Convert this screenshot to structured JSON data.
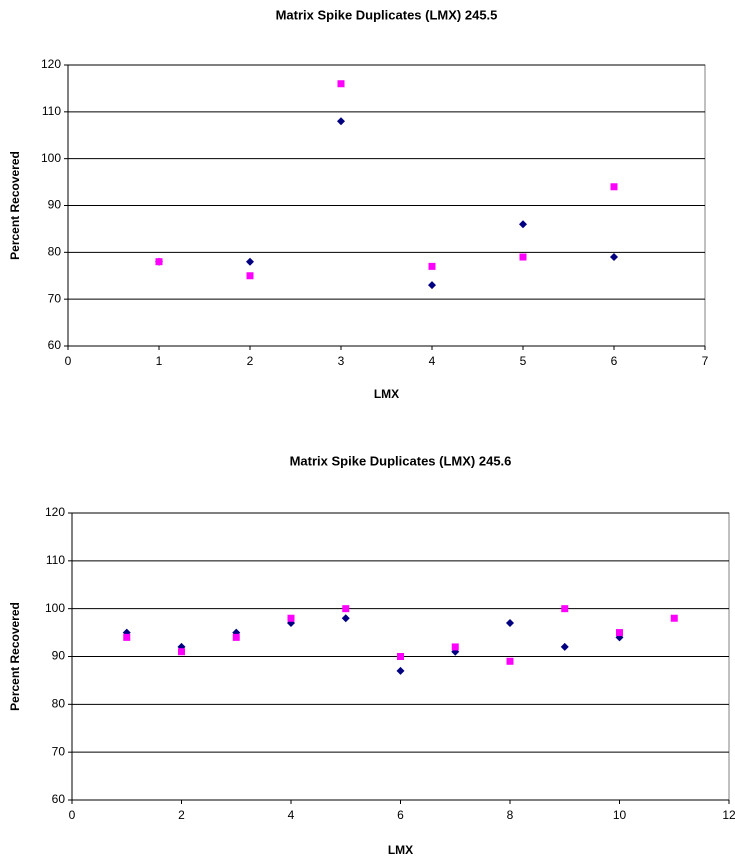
{
  "chart_data": [
    {
      "type": "scatter",
      "title": "Matrix Spike Duplicates (LMX) 245.5",
      "x_label": "LMX",
      "y_label": "Percent Recovered",
      "x": [
        1,
        2,
        3,
        4,
        5,
        6
      ],
      "series": [
        {
          "color": "#000080",
          "marker": "diamond",
          "values": [
            78,
            78,
            108,
            73,
            86,
            79
          ]
        },
        {
          "color": "#ff00ff",
          "marker": "square",
          "values": [
            78,
            75,
            116,
            77,
            79,
            94
          ]
        }
      ],
      "xlim": [
        0,
        7
      ],
      "xticks": [
        0,
        1,
        2,
        3,
        4,
        5,
        6,
        7
      ],
      "ylim": [
        60,
        120
      ],
      "yticks": [
        60,
        70,
        80,
        90,
        100,
        110,
        120
      ],
      "grid": true
    },
    {
      "type": "scatter",
      "title": "Matrix Spike Duplicates (LMX) 245.6",
      "x_label": "LMX",
      "y_label": "Percent Recovered",
      "x": [
        1,
        2,
        3,
        4,
        5,
        6,
        7,
        8,
        9,
        10,
        11
      ],
      "series": [
        {
          "color": "#000080",
          "marker": "diamond",
          "values": [
            95,
            92,
            95,
            97,
            98,
            87,
            91,
            97,
            92,
            94,
            null
          ]
        },
        {
          "color": "#ff00ff",
          "marker": "square",
          "values": [
            94,
            91,
            94,
            98,
            100,
            90,
            92,
            89,
            100,
            95,
            98
          ]
        }
      ],
      "xlim": [
        0,
        12
      ],
      "xticks": [
        0,
        2,
        4,
        6,
        8,
        10,
        12
      ],
      "ylim": [
        60,
        120
      ],
      "yticks": [
        60,
        70,
        80,
        90,
        100,
        110,
        120
      ],
      "grid": true
    }
  ]
}
